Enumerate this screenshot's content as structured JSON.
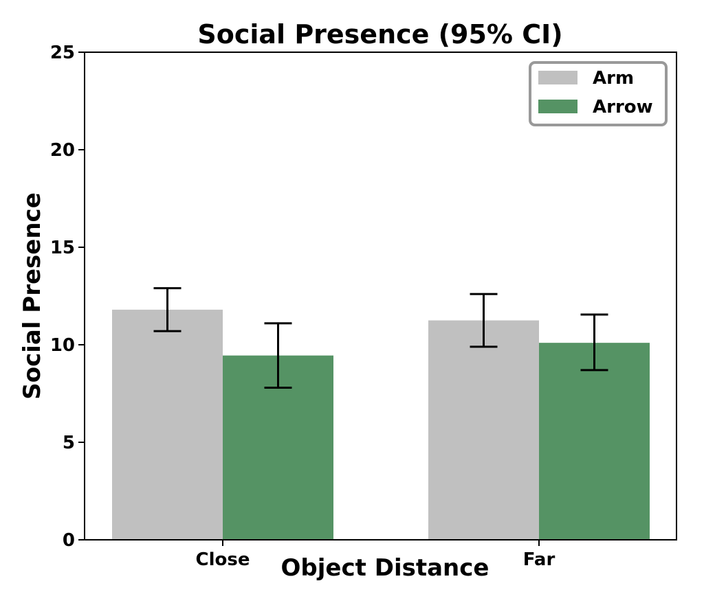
{
  "chart_data": {
    "type": "bar",
    "title": "Social Presence (95% CI)",
    "xlabel": "Object Distance",
    "ylabel": "Social Presence",
    "categories": [
      "Close",
      "Far"
    ],
    "ylim": [
      0,
      25
    ],
    "yticks": [
      0,
      5,
      10,
      15,
      20,
      25
    ],
    "grid": false,
    "legend_position": "top-right",
    "error_bars": "95% CI",
    "series": [
      {
        "name": "Arm",
        "color": "#c0c0c0",
        "values": [
          11.8,
          11.25
        ],
        "ci_low": [
          10.7,
          9.9
        ],
        "ci_high": [
          12.9,
          12.6
        ]
      },
      {
        "name": "Arrow",
        "color": "#559364",
        "values": [
          9.45,
          10.1
        ],
        "ci_low": [
          7.8,
          8.7
        ],
        "ci_high": [
          11.1,
          11.55
        ]
      }
    ]
  }
}
